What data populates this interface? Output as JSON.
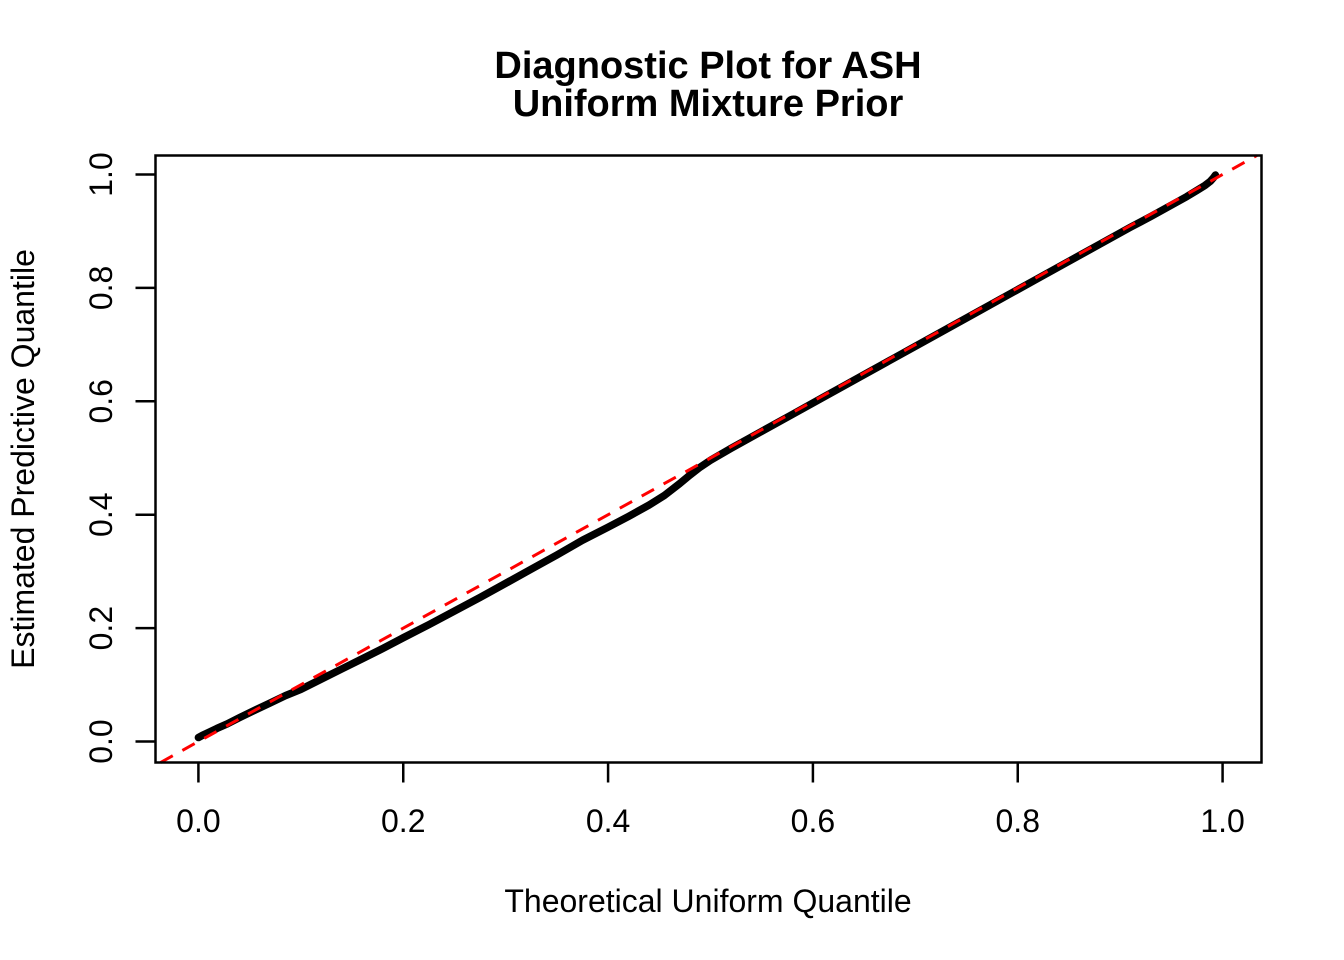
{
  "page": {
    "background": "#ffffff"
  },
  "title": {
    "line1": "Diagnostic Plot for ASH",
    "line2": "Uniform Mixture Prior"
  },
  "chart_data": {
    "type": "line",
    "title": "Diagnostic Plot for ASH\nUniform Mixture Prior",
    "xlabel": "Theoretical Uniform Quantile",
    "ylabel": "Estimated Predictive Quantile",
    "xlim": [
      -0.0419,
      1.038
    ],
    "ylim": [
      -0.037,
      1.0335
    ],
    "grid": false,
    "legend": "none",
    "x_ticks": {
      "values": [
        0.0,
        0.2,
        0.4,
        0.6,
        0.8,
        1.0
      ],
      "labels": [
        "0.0",
        "0.2",
        "0.4",
        "0.6",
        "0.8",
        "1.0"
      ]
    },
    "y_ticks": {
      "values": [
        0.0,
        0.2,
        0.4,
        0.6,
        0.8,
        1.0
      ],
      "labels": [
        "0.0",
        "0.2",
        "0.4",
        "0.6",
        "0.8",
        "1.0"
      ]
    },
    "series": [
      {
        "name": "estimated-predictive-quantile-curve",
        "style": "thick-solid-points",
        "color": "#000000",
        "x": [
          0.0,
          0.004,
          0.01,
          0.018,
          0.028,
          0.04,
          0.056,
          0.07,
          0.085,
          0.1,
          0.12,
          0.14,
          0.16,
          0.18,
          0.2,
          0.225,
          0.25,
          0.275,
          0.3,
          0.325,
          0.35,
          0.375,
          0.4,
          0.42,
          0.44,
          0.455,
          0.47,
          0.48,
          0.49,
          0.5,
          0.52,
          0.55,
          0.58,
          0.61,
          0.64,
          0.67,
          0.7,
          0.73,
          0.76,
          0.79,
          0.82,
          0.85,
          0.88,
          0.91,
          0.93,
          0.95,
          0.965,
          0.975,
          0.983,
          0.988,
          0.991,
          0.993
        ],
        "y": [
          0.007,
          0.011,
          0.016,
          0.023,
          0.031,
          0.042,
          0.056,
          0.068,
          0.081,
          0.092,
          0.11,
          0.128,
          0.146,
          0.164,
          0.183,
          0.206,
          0.23,
          0.254,
          0.279,
          0.304,
          0.329,
          0.355,
          0.378,
          0.397,
          0.417,
          0.434,
          0.455,
          0.47,
          0.484,
          0.496,
          0.517,
          0.547,
          0.577,
          0.607,
          0.637,
          0.667,
          0.697,
          0.727,
          0.757,
          0.787,
          0.817,
          0.847,
          0.877,
          0.907,
          0.926,
          0.946,
          0.961,
          0.972,
          0.981,
          0.988,
          0.994,
          0.999
        ]
      },
      {
        "name": "identity-reference-line",
        "style": "dashed-abline",
        "color": "#FF0000",
        "intercept": 0,
        "slope": 1
      }
    ]
  }
}
